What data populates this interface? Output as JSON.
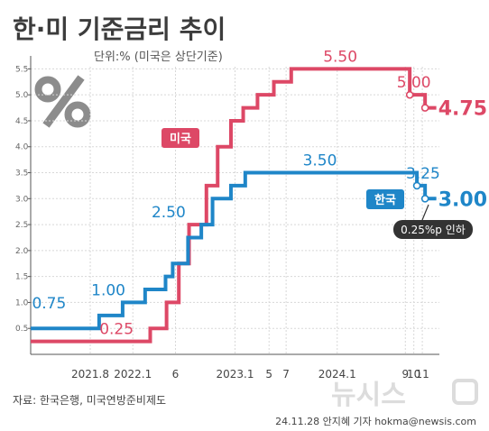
{
  "header": {
    "title": "한·미 기준금리 추이",
    "unit": "단위:% (미국은 상단기준)"
  },
  "icons": {
    "percent": "percent-icon"
  },
  "colors": {
    "korea": "#1f86c8",
    "us": "#dd4866",
    "axis": "#555555",
    "grid": "#d8d8d8",
    "callout_bg": "#333333"
  },
  "chart_data": {
    "type": "line",
    "step": true,
    "title": "한·미 기준금리 추이",
    "subtitle": "단위:% (미국은 상단기준)",
    "ylim": [
      0,
      5.75
    ],
    "y_ticks": [
      "0.5",
      "1.0",
      "1.5",
      "2.0",
      "2.5",
      "3.0",
      "3.5",
      "4.0",
      "4.5",
      "5.0",
      "5.5"
    ],
    "x_ticks": [
      {
        "label": "2021.8",
        "x": 2021.583
      },
      {
        "label": "2022.1",
        "x": 2022.0
      },
      {
        "label": "6",
        "x": 2022.417
      },
      {
        "label": "2023.1",
        "x": 2023.0
      },
      {
        "label": "5",
        "x": 2023.333
      },
      {
        "label": "7",
        "x": 2023.5
      },
      {
        "label": "2024.1",
        "x": 2024.0
      },
      {
        "label": "9",
        "x": 2024.667
      },
      {
        "label": "10",
        "x": 2024.75
      },
      {
        "label": "11",
        "x": 2024.833
      }
    ],
    "grid": true,
    "series": [
      {
        "name": "미국",
        "color": "#dd4866",
        "steps": [
          [
            2021.0,
            0.25
          ],
          [
            2022.17,
            0.5
          ],
          [
            2022.33,
            1.0
          ],
          [
            2022.45,
            1.75
          ],
          [
            2022.55,
            2.5
          ],
          [
            2022.72,
            3.25
          ],
          [
            2022.83,
            4.0
          ],
          [
            2022.96,
            4.5
          ],
          [
            2023.08,
            4.75
          ],
          [
            2023.22,
            5.0
          ],
          [
            2023.38,
            5.25
          ],
          [
            2023.55,
            5.5
          ],
          [
            2024.71,
            5.0
          ],
          [
            2024.86,
            4.75
          ]
        ],
        "end_x": 2024.97,
        "labels": [
          {
            "text": "0.25",
            "x": 2021.84,
            "y": 0.25
          },
          {
            "text": "5.50",
            "x": 2024.03,
            "y": 5.5
          },
          {
            "text": "5.00",
            "x": 2024.75,
            "y": 5.0
          },
          {
            "text": "4.75",
            "x": 2024.98,
            "y": 4.75
          }
        ]
      },
      {
        "name": "한국",
        "color": "#1f86c8",
        "steps": [
          [
            2021.0,
            0.5
          ],
          [
            2021.67,
            0.75
          ],
          [
            2021.9,
            1.0
          ],
          [
            2022.12,
            1.25
          ],
          [
            2022.32,
            1.5
          ],
          [
            2022.39,
            1.75
          ],
          [
            2022.54,
            2.25
          ],
          [
            2022.67,
            2.5
          ],
          [
            2022.78,
            3.0
          ],
          [
            2022.96,
            3.25
          ],
          [
            2023.1,
            3.5
          ],
          [
            2024.78,
            3.25
          ],
          [
            2024.86,
            3.0
          ]
        ],
        "end_x": 2024.97,
        "labels": [
          {
            "text": "0.75",
            "x": 2021.18,
            "y": 0.75
          },
          {
            "text": "1.00",
            "x": 2021.76,
            "y": 1.0
          },
          {
            "text": "2.50",
            "x": 2022.35,
            "y": 2.5
          },
          {
            "text": "3.50",
            "x": 2023.83,
            "y": 3.5
          },
          {
            "text": "3.25",
            "x": 2024.84,
            "y": 3.25
          },
          {
            "text": "3.00",
            "x": 2024.98,
            "y": 3.0
          }
        ]
      }
    ],
    "annotations": [
      "0.25%p 인하"
    ]
  },
  "footer": {
    "source": "자료: 한국은행, 미국연방준비제도",
    "credit": "24.11.28 안지혜 기자 hokma@newsis.com",
    "watermark": "뉴시스"
  }
}
